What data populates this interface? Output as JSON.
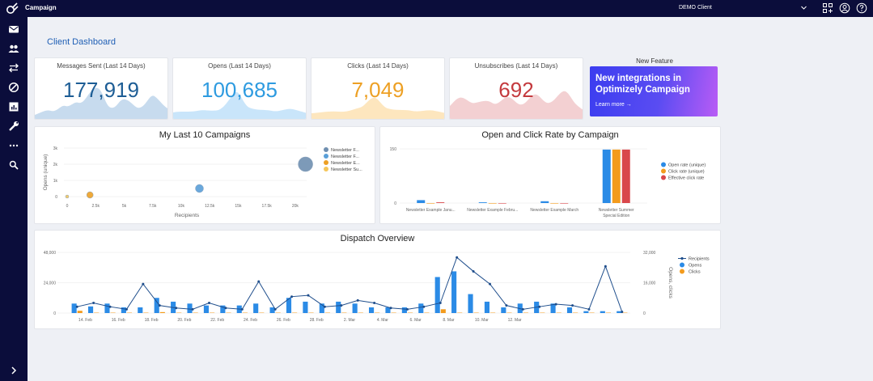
{
  "topbar": {
    "app_title": "Campaign",
    "client_name": "DEMO Client"
  },
  "sidebar": {
    "icons": [
      "mail-icon",
      "people-icon",
      "arrows-icon",
      "block-icon",
      "report-icon",
      "wrench-icon",
      "more-icon",
      "search-icon",
      "expand-icon"
    ]
  },
  "page_title": "Client Dashboard",
  "kpis": [
    {
      "label": "Messages Sent (Last 14 Days)",
      "value": "177,919",
      "color": "#1d5d95",
      "fill": "#c7dbee"
    },
    {
      "label": "Opens (Last 14 Days)",
      "value": "100,685",
      "color": "#2e9be0",
      "fill": "#c9e5fa"
    },
    {
      "label": "Clicks (Last 14 Days)",
      "value": "7,049",
      "color": "#eda024",
      "fill": "#fde6be"
    },
    {
      "label": "Unsubscribes (Last 14 Days)",
      "value": "692",
      "color": "#c43a3e",
      "fill": "#f3d0d2"
    }
  ],
  "feature": {
    "heading": "New Feature",
    "title": "New integrations in Optimizely Campaign",
    "link": "Learn more →"
  },
  "charts": {
    "campaigns": {
      "title": "My Last 10 Campaigns",
      "chart_data": {
        "type": "scatter",
        "xlabel": "Recipients",
        "ylabel": "Opens (unique)",
        "x_ticks": [
          "0",
          "2.5k",
          "5k",
          "7.5k",
          "10k",
          "12.5k",
          "15k",
          "17.5k",
          "20k"
        ],
        "y_ticks": [
          "0",
          "1k",
          "2k",
          "3k"
        ],
        "xlim": [
          0,
          21000
        ],
        "ylim": [
          0,
          3000
        ],
        "points": [
          {
            "x": 0,
            "y": 0,
            "size": 2,
            "color": "#f5c65a"
          },
          {
            "x": 2000,
            "y": 100,
            "size": 4,
            "color": "#eda024"
          },
          {
            "x": 11600,
            "y": 500,
            "size": 5,
            "color": "#5a9fd8"
          },
          {
            "x": 20900,
            "y": 2000,
            "size": 9,
            "color": "#6f8fb0"
          }
        ],
        "legend": [
          {
            "label": "Newsletter F...",
            "color": "#6f8fb0"
          },
          {
            "label": "Newsletter F...",
            "color": "#5a9fd8"
          },
          {
            "label": "Newsletter E...",
            "color": "#eda024"
          },
          {
            "label": "Newsletter Su...",
            "color": "#f5c65a"
          }
        ]
      }
    },
    "rates": {
      "title": "Open and Click Rate by Campaign",
      "chart_data": {
        "type": "bar",
        "categories": [
          "Newsletter Example Janu...",
          "Newsletter Example Febru...",
          "Newsletter Example March",
          "Newsletter Summer Special Edition"
        ],
        "y_ticks": [
          "0",
          "150"
        ],
        "ylim": [
          0,
          150
        ],
        "series": [
          {
            "name": "Open rate (unique)",
            "color": "#2b8be6",
            "values": [
              8,
              2,
              5,
              148
            ]
          },
          {
            "name": "Click rate (unique)",
            "color": "#f39b1d",
            "values": [
              0,
              0,
              0,
              148
            ]
          },
          {
            "name": "Effective click rate",
            "color": "#d9474b",
            "values": [
              2,
              0,
              0,
              148
            ]
          }
        ]
      }
    },
    "dispatch": {
      "title": "Dispatch Overview",
      "chart_data": {
        "type": "bar",
        "y_left_ticks": [
          "0",
          "24,000",
          "48,000"
        ],
        "y_right_ticks": [
          "0",
          "16,000",
          "32,000"
        ],
        "y_right_label": "Opens, clicks",
        "x_ticks": [
          "14. Feb",
          "16. Feb",
          "18. Feb",
          "20. Feb",
          "22. Feb",
          "24. Feb",
          "26. Feb",
          "28. Feb",
          "2. Mar",
          "4. Mar",
          "6. Mar",
          "8. Mar",
          "10. Mar",
          "12. Mar"
        ],
        "ylim_left": [
          0,
          48000
        ],
        "ylim_right": [
          0,
          32000
        ],
        "series": [
          {
            "name": "Recipients",
            "color": "#1f4e8c",
            "type": "line",
            "values": [
              5000,
              8000,
              5000,
              3000,
              23000,
              6000,
              4000,
              3000,
              8000,
              4000,
              3000,
              25000,
              3000,
              13000,
              14000,
              5000,
              6000,
              10000,
              8000,
              4000,
              3000,
              5000,
              8000,
              44000,
              33000,
              23000,
              6000,
              3000,
              5000,
              7000,
              6000,
              3000,
              37000,
              1000
            ]
          },
          {
            "name": "Opens",
            "color": "#2b8be6",
            "type": "bar",
            "values": [
              5000,
              3500,
              5000,
              3000,
              3000,
              8000,
              6000,
              5000,
              4000,
              4000,
              4000,
              5000,
              3000,
              8000,
              6000,
              5000,
              6000,
              5000,
              3000,
              3000,
              3000,
              5000,
              19000,
              22000,
              10000,
              6000,
              3000,
              5000,
              6000,
              5000,
              3000,
              1000,
              1000,
              1000
            ]
          },
          {
            "name": "Clicks",
            "color": "#f39b1d",
            "type": "bar",
            "values": [
              1200,
              200,
              200,
              200,
              200,
              500,
              200,
              200,
              200,
              200,
              200,
              200,
              200,
              200,
              200,
              200,
              200,
              200,
              200,
              200,
              200,
              200,
              2000,
              200,
              200,
              200,
              200,
              200,
              200,
              200,
              200,
              200,
              200,
              200
            ]
          }
        ]
      }
    }
  }
}
